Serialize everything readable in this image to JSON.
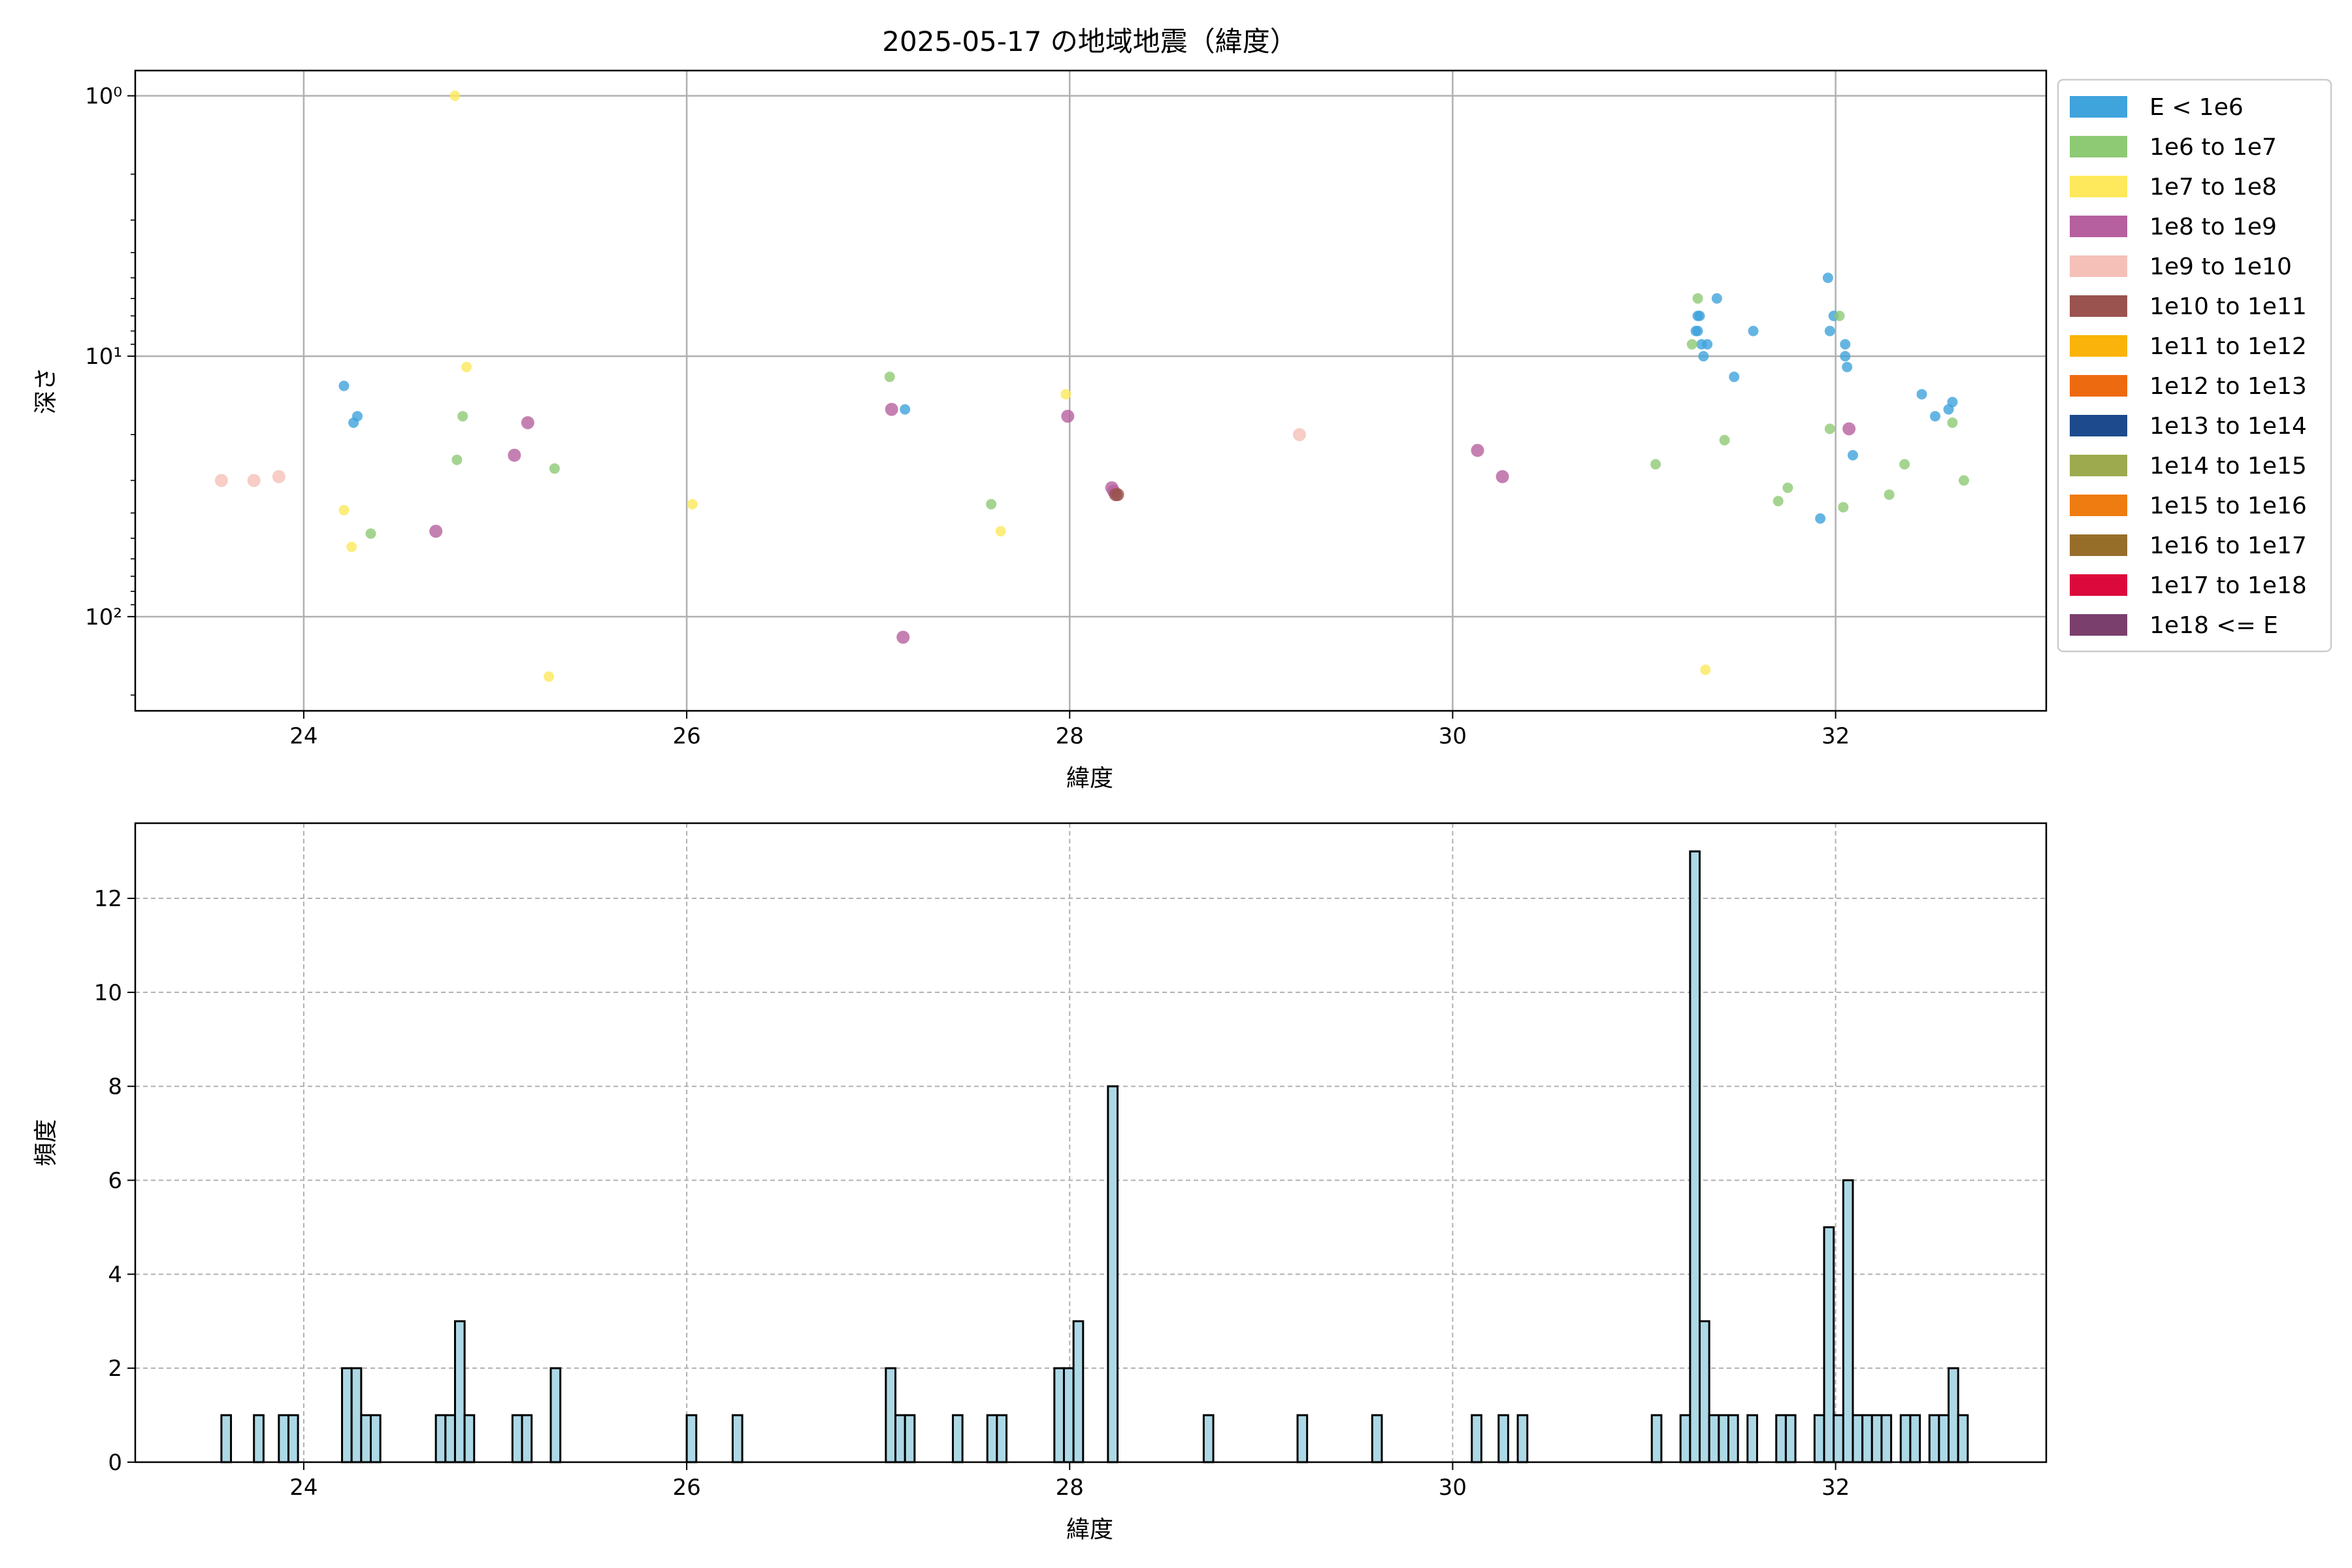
{
  "chart_data": [
    {
      "type": "scatter",
      "title": "2025-05-17 の地域地震（緯度）",
      "xlabel": "緯度",
      "ylabel": "深さ",
      "xlim": [
        23.12,
        33.1
      ],
      "ylim": [
        230,
        0.8
      ],
      "y_scale": "log",
      "y_inverted": true,
      "x_ticks": [
        24,
        26,
        28,
        30,
        32
      ],
      "y_ticks": [
        {
          "value": 1,
          "label": "10⁰"
        },
        {
          "value": 10,
          "label": "10¹"
        },
        {
          "value": 100,
          "label": "10²"
        }
      ],
      "grid": true,
      "legend_position": "outside-right",
      "legend": [
        {
          "label": "E < 1e6",
          "color": "#3fa3dc"
        },
        {
          "label": "1e6 to 1e7",
          "color": "#8ec974"
        },
        {
          "label": "1e7 to 1e8",
          "color": "#fde95b"
        },
        {
          "label": "1e8 to 1e9",
          "color": "#b6609f"
        },
        {
          "label": "1e9 to 1e10",
          "color": "#f5c0b8"
        },
        {
          "label": "1e10 to 1e11",
          "color": "#9a534f"
        },
        {
          "label": "1e11 to 1e12",
          "color": "#f9b30a"
        },
        {
          "label": "1e12 to 1e13",
          "color": "#ee6a10"
        },
        {
          "label": "1e13 to 1e14",
          "color": "#1c4a8d"
        },
        {
          "label": "1e14 to 1e15",
          "color": "#9dab4e"
        },
        {
          "label": "1e15 to 1e16",
          "color": "#ee7c10"
        },
        {
          "label": "1e16 to 1e17",
          "color": "#976d2a"
        },
        {
          "label": "1e17 to 1e18",
          "color": "#dc0a3c"
        },
        {
          "label": "1e18 <= E",
          "color": "#7b3f6e"
        }
      ],
      "series": [
        {
          "class": 0,
          "x": [
            24.21,
            24.26,
            24.28,
            27.14,
            31.27,
            31.28,
            31.28,
            31.29,
            31.3,
            31.31,
            31.33,
            31.38,
            31.47,
            31.57,
            31.92,
            31.96,
            31.97,
            31.99,
            32.05,
            32.05,
            32.06,
            32.09,
            32.45,
            32.52,
            32.59,
            32.61
          ],
          "y": [
            13,
            18,
            17,
            16,
            8,
            8,
            7,
            7,
            9,
            10,
            9,
            6,
            12,
            8,
            42,
            5,
            8,
            7,
            9,
            10,
            11,
            24,
            14,
            17,
            16,
            15
          ]
        },
        {
          "class": 1,
          "x": [
            24.35,
            24.8,
            24.83,
            25.31,
            27.06,
            27.59,
            31.06,
            31.25,
            31.28,
            31.42,
            31.7,
            31.75,
            31.97,
            32.02,
            32.04,
            32.28,
            32.36,
            32.61,
            32.67
          ],
          "y": [
            48,
            25,
            17,
            27,
            12,
            37,
            26,
            9,
            6,
            21,
            36,
            32,
            19,
            7,
            38,
            34,
            26,
            18,
            30
          ]
        },
        {
          "class": 2,
          "x": [
            24.21,
            24.25,
            24.79,
            24.85,
            25.28,
            26.03,
            27.64,
            27.98,
            31.32
          ],
          "y": [
            39,
            54,
            1,
            11,
            170,
            37,
            47,
            14,
            160
          ]
        },
        {
          "class": 3,
          "x": [
            24.69,
            25.1,
            25.17,
            27.07,
            27.13,
            27.99,
            28.22,
            28.23,
            30.13,
            30.26,
            32.07
          ],
          "y": [
            47,
            24,
            18,
            16,
            120,
            17,
            32,
            33,
            23,
            29,
            19
          ]
        },
        {
          "class": 4,
          "x": [
            23.57,
            23.74,
            23.87,
            29.2
          ],
          "y": [
            30,
            30,
            29,
            20
          ]
        },
        {
          "class": 5,
          "x": [
            28.24,
            28.25
          ],
          "y": [
            34,
            34
          ]
        }
      ]
    },
    {
      "type": "bar",
      "title": "",
      "xlabel": "緯度",
      "ylabel": "頻度",
      "xlim": [
        23.12,
        33.1
      ],
      "ylim": [
        0,
        13.6
      ],
      "x_ticks": [
        24,
        26,
        28,
        30,
        32
      ],
      "y_ticks": [
        0,
        2,
        4,
        6,
        8,
        10,
        12
      ],
      "grid": true,
      "bin_width": 0.05,
      "bar_color": "#add8e6",
      "bins": [
        [
          23.57,
          1
        ],
        [
          23.74,
          1
        ],
        [
          23.87,
          1
        ],
        [
          23.92,
          1
        ],
        [
          24.2,
          2
        ],
        [
          24.25,
          2
        ],
        [
          24.3,
          1
        ],
        [
          24.35,
          1
        ],
        [
          24.69,
          1
        ],
        [
          24.74,
          1
        ],
        [
          24.79,
          3
        ],
        [
          24.84,
          1
        ],
        [
          25.09,
          1
        ],
        [
          25.14,
          1
        ],
        [
          25.29,
          2
        ],
        [
          26.0,
          1
        ],
        [
          26.24,
          1
        ],
        [
          27.04,
          2
        ],
        [
          27.09,
          1
        ],
        [
          27.14,
          1
        ],
        [
          27.39,
          1
        ],
        [
          27.57,
          1
        ],
        [
          27.62,
          1
        ],
        [
          27.92,
          2
        ],
        [
          27.97,
          2
        ],
        [
          28.02,
          3
        ],
        [
          28.2,
          8
        ],
        [
          28.7,
          1
        ],
        [
          29.19,
          1
        ],
        [
          29.58,
          1
        ],
        [
          30.1,
          1
        ],
        [
          30.24,
          1
        ],
        [
          30.34,
          1
        ],
        [
          31.04,
          1
        ],
        [
          31.19,
          1
        ],
        [
          31.24,
          13
        ],
        [
          31.29,
          3
        ],
        [
          31.34,
          1
        ],
        [
          31.39,
          1
        ],
        [
          31.44,
          1
        ],
        [
          31.54,
          1
        ],
        [
          31.69,
          1
        ],
        [
          31.74,
          1
        ],
        [
          31.89,
          1
        ],
        [
          31.94,
          5
        ],
        [
          31.99,
          1
        ],
        [
          32.04,
          6
        ],
        [
          32.09,
          1
        ],
        [
          32.14,
          1
        ],
        [
          32.19,
          1
        ],
        [
          32.24,
          1
        ],
        [
          32.34,
          1
        ],
        [
          32.39,
          1
        ],
        [
          32.49,
          1
        ],
        [
          32.54,
          1
        ],
        [
          32.59,
          2
        ],
        [
          32.64,
          1
        ]
      ]
    }
  ]
}
